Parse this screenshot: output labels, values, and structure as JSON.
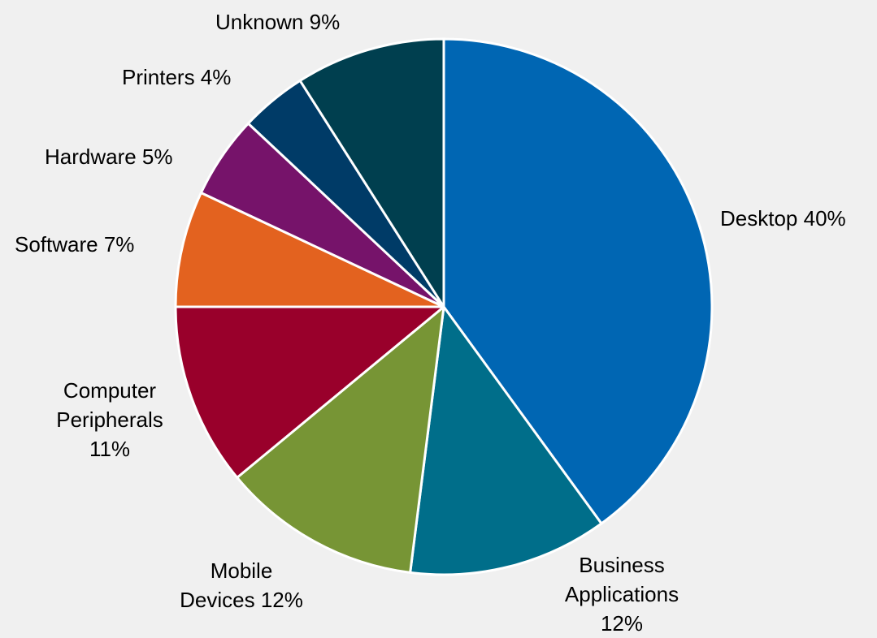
{
  "chart_data": {
    "type": "pie",
    "title": "",
    "legend": "none",
    "slices": [
      {
        "label": "Desktop",
        "value": 40,
        "label_lines": [
          "Desktop 40%"
        ],
        "color": "#0066b3"
      },
      {
        "label": "Business Applications",
        "value": 12,
        "label_lines": [
          "Business",
          "Applications",
          "12%"
        ],
        "color": "#006e8a"
      },
      {
        "label": "Mobile Devices",
        "value": 12,
        "label_lines": [
          "Mobile",
          "Devices 12%"
        ],
        "color": "#779535"
      },
      {
        "label": "Computer Peripherals",
        "value": 11,
        "label_lines": [
          "Computer",
          "Peripherals",
          "11%"
        ],
        "color": "#99002b"
      },
      {
        "label": "Software",
        "value": 7,
        "label_lines": [
          "Software 7%"
        ],
        "color": "#e3621f"
      },
      {
        "label": "Hardware",
        "value": 5,
        "label_lines": [
          "Hardware 5%"
        ],
        "color": "#76136a"
      },
      {
        "label": "Printers",
        "value": 4,
        "label_lines": [
          "Printers 4%"
        ],
        "color": "#003b67"
      },
      {
        "label": "Unknown",
        "value": 9,
        "label_lines": [
          "Unknown 9%"
        ],
        "color": "#003f4f"
      }
    ]
  },
  "colors": {
    "background": "#f0f0f0",
    "slice_border": "#ffffff",
    "label_text": "#000000"
  }
}
